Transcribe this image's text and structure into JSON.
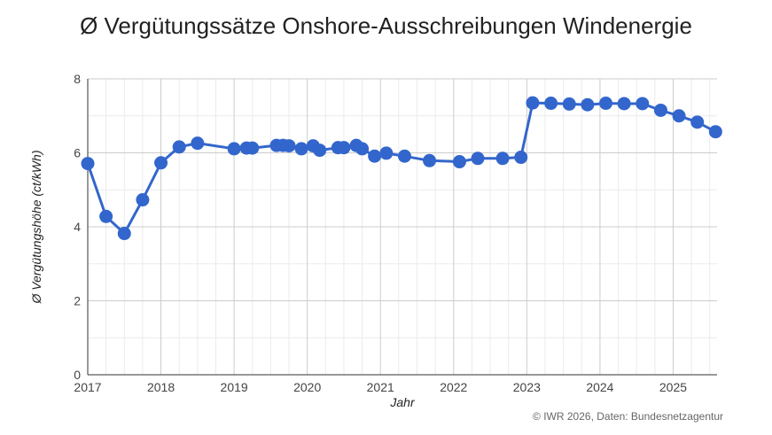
{
  "chart_data": {
    "type": "line",
    "title": "Ø Vergütungssätze Onshore-Ausschreibungen Windenergie",
    "xlabel": "Jahr",
    "ylabel": "Ø Vergütungshöhe (ct/kWh)",
    "credit": "© IWR 2026, Daten: Bundesnetzagentur",
    "xlim": [
      2017,
      2025.6
    ],
    "ylim": [
      0,
      8
    ],
    "x_ticks": [
      "2017",
      "2018",
      "2019",
      "2020",
      "2021",
      "2022",
      "2023",
      "2024",
      "2025"
    ],
    "y_ticks": [
      "0",
      "2",
      "4",
      "6",
      "8"
    ],
    "grid": true,
    "series_color": "#3366cc",
    "series": [
      {
        "x": [
          2017.0,
          2017.25,
          2017.5,
          2017.75,
          2018.0,
          2018.25,
          2018.5,
          2019.0,
          2019.17,
          2019.25,
          2019.58,
          2019.67,
          2019.75,
          2019.92,
          2020.08,
          2020.17,
          2020.42,
          2020.5,
          2020.67,
          2020.75,
          2020.92,
          2021.08,
          2021.33,
          2021.67,
          2022.08,
          2022.33,
          2022.67,
          2022.92,
          2023.08,
          2023.33,
          2023.58,
          2023.83,
          2024.08,
          2024.33,
          2024.58,
          2024.83,
          2025.08,
          2025.33,
          2025.58
        ],
        "y": [
          5.71,
          4.28,
          3.82,
          4.73,
          5.73,
          6.16,
          6.26,
          6.11,
          6.13,
          6.13,
          6.2,
          6.2,
          6.19,
          6.11,
          6.19,
          6.07,
          6.14,
          6.14,
          6.2,
          6.11,
          5.91,
          5.99,
          5.91,
          5.79,
          5.76,
          5.85,
          5.85,
          5.88,
          7.35,
          7.34,
          7.32,
          7.3,
          7.34,
          7.33,
          7.33,
          7.15,
          7.0,
          6.83,
          6.57
        ]
      }
    ]
  }
}
